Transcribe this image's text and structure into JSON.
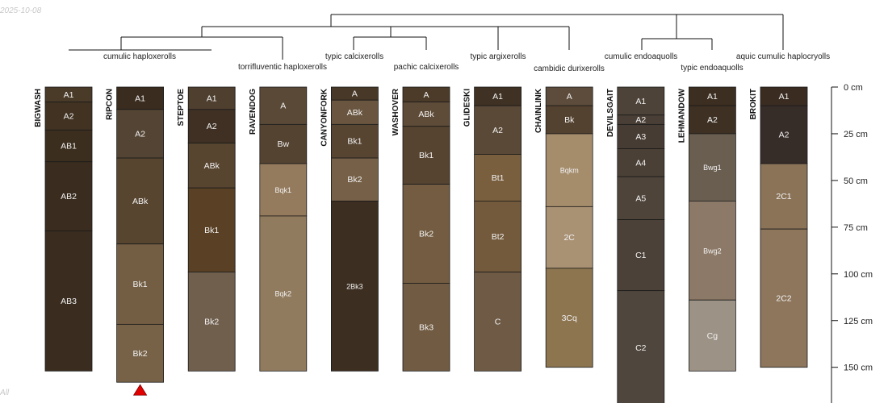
{
  "date_label": "2025-10-08",
  "footer_label": "All",
  "chart_data": {
    "type": "soil-profile-sketch",
    "depth_unit": "cm",
    "depth_ticks": [
      0,
      25,
      50,
      75,
      100,
      125,
      150
    ],
    "tick_labels": [
      "0 cm",
      "25 cm",
      "50 cm",
      "75 cm",
      "100 cm",
      "125 cm",
      "150 cm"
    ],
    "profiles": [
      {
        "name": "BIGWASH",
        "bottom": 152,
        "horizons": [
          {
            "name": "A1",
            "top": 0,
            "bottom": 8,
            "color": "#4a3a28"
          },
          {
            "name": "A2",
            "top": 8,
            "bottom": 23,
            "color": "#413222"
          },
          {
            "name": "AB1",
            "top": 23,
            "bottom": 40,
            "color": "#3c2e1f"
          },
          {
            "name": "AB2",
            "top": 40,
            "bottom": 77,
            "color": "#3a2c1e"
          },
          {
            "name": "AB3",
            "top": 77,
            "bottom": 152,
            "color": "#3a2c1e"
          }
        ]
      },
      {
        "name": "RIPCON",
        "bottom": 158,
        "horizons": [
          {
            "name": "A1",
            "top": 0,
            "bottom": 12,
            "color": "#3a2c1f"
          },
          {
            "name": "A2",
            "top": 12,
            "bottom": 38,
            "color": "#544434"
          },
          {
            "name": "ABk",
            "top": 38,
            "bottom": 84,
            "color": "#574530"
          },
          {
            "name": "Bk1",
            "top": 84,
            "bottom": 127,
            "color": "#735e44"
          },
          {
            "name": "Bk2",
            "top": 127,
            "bottom": 158,
            "color": "#776248"
          }
        ]
      },
      {
        "name": "STEPTOE",
        "bottom": 152,
        "horizons": [
          {
            "name": "A1",
            "top": 0,
            "bottom": 12,
            "color": "#4f3f2f"
          },
          {
            "name": "A2",
            "top": 12,
            "bottom": 30,
            "color": "#3f3023"
          },
          {
            "name": "ABk",
            "top": 30,
            "bottom": 54,
            "color": "#574530"
          },
          {
            "name": "Bk1",
            "top": 54,
            "bottom": 99,
            "color": "#5a4024"
          },
          {
            "name": "Bk2",
            "top": 99,
            "bottom": 152,
            "color": "#715f4e"
          }
        ]
      },
      {
        "name": "RAVENDOG",
        "bottom": 152,
        "horizons": [
          {
            "name": "A",
            "top": 0,
            "bottom": 20,
            "color": "#5a4937"
          },
          {
            "name": "Bw",
            "top": 20,
            "bottom": 41,
            "color": "#554331"
          },
          {
            "name": "Bqk1",
            "top": 41,
            "bottom": 69,
            "color": "#957b5d"
          },
          {
            "name": "Bqk2",
            "top": 69,
            "bottom": 152,
            "color": "#917b5e"
          }
        ]
      },
      {
        "name": "CANYONFORK",
        "bottom": 152,
        "horizons": [
          {
            "name": "A",
            "top": 0,
            "bottom": 7,
            "color": "#483828"
          },
          {
            "name": "ABk",
            "top": 7,
            "bottom": 20,
            "color": "#6a5640"
          },
          {
            "name": "Bk1",
            "top": 20,
            "bottom": 38,
            "color": "#574532"
          },
          {
            "name": "Bk2",
            "top": 38,
            "bottom": 61,
            "color": "#766048"
          },
          {
            "name": "2Bk3",
            "top": 61,
            "bottom": 152,
            "color": "#3c2e21"
          }
        ]
      },
      {
        "name": "WASHOVER",
        "bottom": 152,
        "horizons": [
          {
            "name": "A",
            "top": 0,
            "bottom": 8,
            "color": "#4c3b29"
          },
          {
            "name": "ABk",
            "top": 8,
            "bottom": 21,
            "color": "#5f4c38"
          },
          {
            "name": "Bk1",
            "top": 21,
            "bottom": 52,
            "color": "#564330"
          },
          {
            "name": "Bk2",
            "top": 52,
            "bottom": 105,
            "color": "#735c41"
          },
          {
            "name": "Bk3",
            "top": 105,
            "bottom": 152,
            "color": "#715b42"
          }
        ]
      },
      {
        "name": "GLIDESKI",
        "bottom": 152,
        "horizons": [
          {
            "name": "A1",
            "top": 0,
            "bottom": 10,
            "color": "#3f3123"
          },
          {
            "name": "A2",
            "top": 10,
            "bottom": 36,
            "color": "#5a4937"
          },
          {
            "name": "Bt1",
            "top": 36,
            "bottom": 61,
            "color": "#7a5f3e"
          },
          {
            "name": "Bt2",
            "top": 61,
            "bottom": 99,
            "color": "#735a3c"
          },
          {
            "name": "C",
            "top": 99,
            "bottom": 152,
            "color": "#6f5b45"
          }
        ]
      },
      {
        "name": "CHAINLINK",
        "bottom": 150,
        "horizons": [
          {
            "name": "A",
            "top": 0,
            "bottom": 10,
            "color": "#5d4c3b"
          },
          {
            "name": "Bk",
            "top": 10,
            "bottom": 25,
            "color": "#544230"
          },
          {
            "name": "Bqkm",
            "top": 25,
            "bottom": 64,
            "color": "#a58d6c"
          },
          {
            "name": "2C",
            "top": 64,
            "bottom": 97,
            "color": "#a99174"
          },
          {
            "name": "3Cq",
            "top": 97,
            "bottom": 150,
            "color": "#8d7550"
          }
        ]
      },
      {
        "name": "DEVILSGAIT",
        "bottom": 170,
        "horizons": [
          {
            "name": "A1",
            "top": 0,
            "bottom": 15,
            "color": "#4e4339"
          },
          {
            "name": "A2",
            "top": 15,
            "bottom": 20,
            "color": "#4a3f36"
          },
          {
            "name": "A3",
            "top": 20,
            "bottom": 33,
            "color": "#473c33"
          },
          {
            "name": "A4",
            "top": 33,
            "bottom": 48,
            "color": "#4a4036"
          },
          {
            "name": "A5",
            "top": 48,
            "bottom": 71,
            "color": "#4e443a"
          },
          {
            "name": "C1",
            "top": 71,
            "bottom": 109,
            "color": "#4b4138"
          },
          {
            "name": "C2",
            "top": 109,
            "bottom": 170,
            "color": "#4f463d"
          }
        ]
      },
      {
        "name": "LEHMANDOW",
        "bottom": 152,
        "horizons": [
          {
            "name": "A1",
            "top": 0,
            "bottom": 10,
            "color": "#3c2e20"
          },
          {
            "name": "A2",
            "top": 10,
            "bottom": 25,
            "color": "#3e3124"
          },
          {
            "name": "Bwg1",
            "top": 25,
            "bottom": 61,
            "color": "#6a5e51"
          },
          {
            "name": "Bwg2",
            "top": 61,
            "bottom": 114,
            "color": "#8c7967"
          },
          {
            "name": "Cg",
            "top": 114,
            "bottom": 152,
            "color": "#9c9286"
          }
        ]
      },
      {
        "name": "BROKIT",
        "bottom": 150,
        "horizons": [
          {
            "name": "A1",
            "top": 0,
            "bottom": 10,
            "color": "#3a2c21"
          },
          {
            "name": "A2",
            "top": 10,
            "bottom": 41,
            "color": "#362c28"
          },
          {
            "name": "2C1",
            "top": 41,
            "bottom": 76,
            "color": "#8b7358"
          },
          {
            "name": "2C2",
            "top": 76,
            "bottom": 150,
            "color": "#8d765c"
          }
        ]
      }
    ],
    "taxa_labels": [
      "cumulic haploxerolls",
      "torrifluventic haploxerolls",
      "typic calcixerolls",
      "pachic calcixerolls",
      "typic argixerolls",
      "cambidic durixerolls",
      "cumulic endoaquolls",
      "typic endoaquolls",
      "aquic cumulic haplocryolls"
    ],
    "markers": [
      {
        "profile": "RIPCON",
        "symbol": "triangle",
        "color": "#e00000"
      }
    ]
  }
}
